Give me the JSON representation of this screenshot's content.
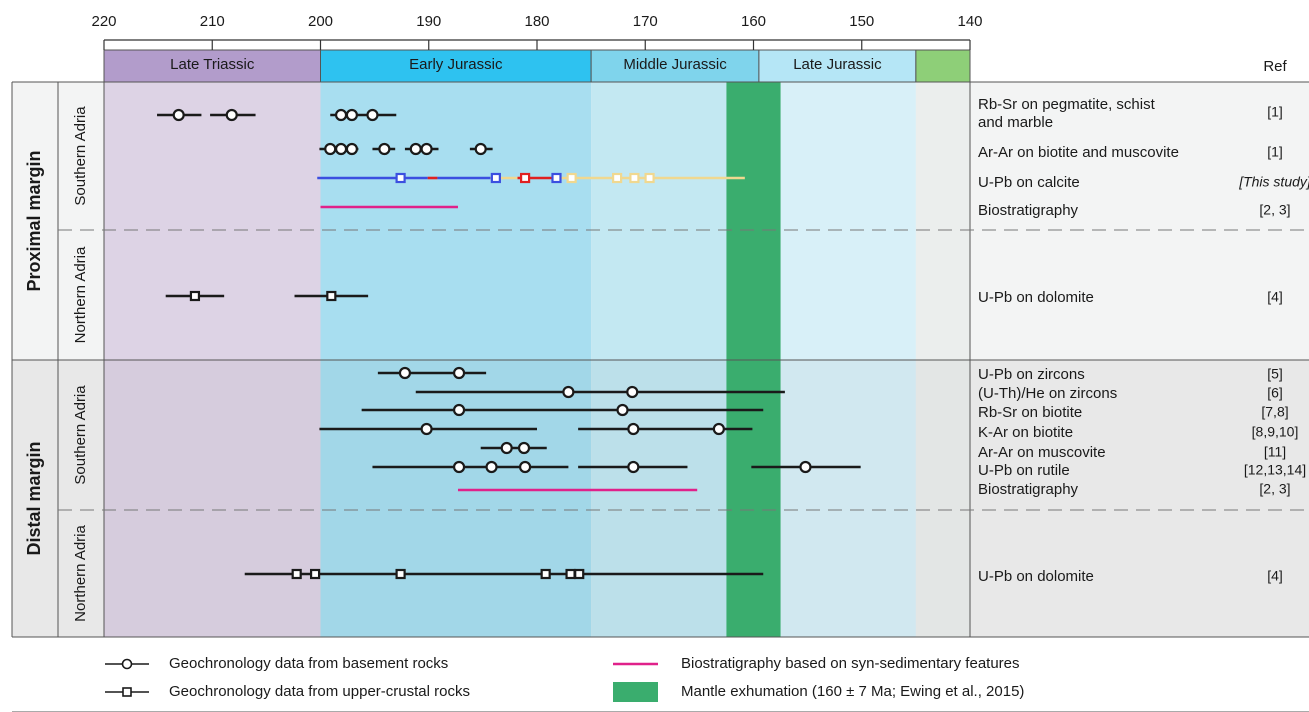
{
  "chart_data": {
    "type": "range",
    "xlim": [
      220,
      140
    ],
    "xticks": [
      220,
      210,
      200,
      190,
      180,
      170,
      160,
      150,
      140
    ],
    "ref_header": "Ref",
    "periods": [
      {
        "name": "Late Triassic",
        "from": 220,
        "to": 200,
        "color": "#b29ccb",
        "band": "#ddd3e5"
      },
      {
        "name": "Early Jurassic",
        "from": 200,
        "to": 175,
        "color": "#2ec2f0",
        "band": "#a8def0"
      },
      {
        "name": "Middle Jurassic",
        "from": 175,
        "to": 159.5,
        "color": "#7fd4ec",
        "band": "#c3e8f2"
      },
      {
        "name": "Late Jurassic",
        "from": 159.5,
        "to": 145,
        "color": "#b5e6f6",
        "band": "#d8f0f8"
      },
      {
        "from": 145,
        "to": 140,
        "color": "#8ecf78",
        "band": "#ebeeed"
      }
    ],
    "exhumation": {
      "from": 162.5,
      "to": 157.5,
      "color": "#3aad6e"
    },
    "groups": [
      {
        "name": "Proximal margin",
        "subgroups": [
          {
            "name": "Southern Adria",
            "rows": [
              {
                "method": [
                  "Rb-Sr on pegmatite, schist",
                  "and marble"
                ],
                "ref": "[1]",
                "marker": "circle",
                "segments": [
                  {
                    "from": 215.1,
                    "to": 211.0
                  },
                  {
                    "from": 210.2,
                    "to": 206.0
                  },
                  {
                    "from": 199.1,
                    "to": 193.0
                  }
                ],
                "points": [
                  {
                    "age": 213.1
                  },
                  {
                    "age": 208.2
                  },
                  {
                    "age": 198.1
                  },
                  {
                    "age": 197.1
                  },
                  {
                    "age": 195.2
                  }
                ]
              },
              {
                "method": [
                  "Ar-Ar on biotite and muscovite"
                ],
                "ref": "[1]",
                "marker": "circle",
                "segments": [
                  {
                    "from": 200.1,
                    "to": 196.5
                  },
                  {
                    "from": 195.2,
                    "to": 193.1
                  },
                  {
                    "from": 192.2,
                    "to": 189.1
                  },
                  {
                    "from": 186.2,
                    "to": 184.1
                  }
                ],
                "points": [
                  {
                    "age": 199.1
                  },
                  {
                    "age": 198.1
                  },
                  {
                    "age": 197.1
                  },
                  {
                    "age": 194.1
                  },
                  {
                    "age": 191.2
                  },
                  {
                    "age": 190.2
                  },
                  {
                    "age": 185.2
                  }
                ]
              },
              {
                "method": [
                  "U-Pb on calcite"
                ],
                "ref": "[This study]",
                "italic": true,
                "marker": "square",
                "segments": [
                  {
                    "from": 200.3,
                    "to": 190.1,
                    "color": "#3b4fe0"
                  },
                  {
                    "from": 190.1,
                    "to": 189.2,
                    "color": "#e02020"
                  },
                  {
                    "from": 189.2,
                    "to": 184.3,
                    "color": "#3b4fe0"
                  },
                  {
                    "from": 184.3,
                    "to": 181.8,
                    "color": "#f0d890"
                  },
                  {
                    "from": 181.8,
                    "to": 178.2,
                    "color": "#e02020"
                  },
                  {
                    "from": 178.2,
                    "to": 160.8,
                    "color": "#f0d890"
                  }
                ],
                "points": [
                  {
                    "age": 192.6,
                    "color": "#3b4fe0"
                  },
                  {
                    "age": 183.8,
                    "color": "#3b4fe0"
                  },
                  {
                    "age": 181.1,
                    "color": "#e02020"
                  },
                  {
                    "age": 178.2,
                    "color": "#3b4fe0"
                  },
                  {
                    "age": 176.8,
                    "color": "#f0d890"
                  },
                  {
                    "age": 172.6,
                    "color": "#f0d890"
                  },
                  {
                    "age": 171.0,
                    "color": "#f0d890"
                  },
                  {
                    "age": 169.6,
                    "color": "#f0d890"
                  }
                ]
              },
              {
                "method": [
                  "Biostratigraphy"
                ],
                "ref": "[2, 3]",
                "marker": "circle",
                "segments": [
                  {
                    "from": 200.0,
                    "to": 187.3,
                    "color": "#e0218a"
                  }
                ],
                "points": []
              }
            ]
          },
          {
            "name": "Northern Adria",
            "rows": [
              {
                "method": [
                  "U-Pb on dolomite"
                ],
                "ref": "[4]",
                "marker": "square",
                "segments": [
                  {
                    "from": 214.3,
                    "to": 208.9
                  },
                  {
                    "from": 202.4,
                    "to": 195.6
                  }
                ],
                "points": [
                  {
                    "age": 211.6
                  },
                  {
                    "age": 199.0
                  }
                ]
              }
            ]
          }
        ]
      },
      {
        "name": "Distal margin",
        "subgroups": [
          {
            "name": "Southern Adria",
            "rows": [
              {
                "method": [
                  "U-Pb on zircons"
                ],
                "ref": "[5]",
                "marker": "circle",
                "segments": [
                  {
                    "from": 194.7,
                    "to": 184.7
                  }
                ],
                "points": [
                  {
                    "age": 192.2
                  },
                  {
                    "age": 187.2
                  }
                ]
              },
              {
                "method": [
                  "(U-Th)/He on zircons"
                ],
                "ref": "[6]",
                "marker": "circle",
                "segments": [
                  {
                    "from": 191.2,
                    "to": 157.1
                  }
                ],
                "points": [
                  {
                    "age": 177.1
                  },
                  {
                    "age": 171.2
                  }
                ]
              },
              {
                "method": [
                  "Rb-Sr on biotite"
                ],
                "ref": "[7,8]",
                "marker": "circle",
                "segments": [
                  {
                    "from": 196.2,
                    "to": 159.1
                  }
                ],
                "points": [
                  {
                    "age": 187.2
                  },
                  {
                    "age": 172.1
                  }
                ]
              },
              {
                "method": [
                  "K-Ar on biotite"
                ],
                "ref": "[8,9,10]",
                "marker": "circle",
                "segments": [
                  {
                    "from": 200.1,
                    "to": 180.0
                  },
                  {
                    "from": 176.2,
                    "to": 160.1
                  }
                ],
                "points": [
                  {
                    "age": 190.2
                  },
                  {
                    "age": 171.1
                  },
                  {
                    "age": 163.2
                  }
                ]
              },
              {
                "method": [
                  "Ar-Ar on muscovite"
                ],
                "ref": "[11]",
                "marker": "circle",
                "segments": [
                  {
                    "from": 185.2,
                    "to": 179.1
                  }
                ],
                "points": [
                  {
                    "age": 182.8
                  },
                  {
                    "age": 181.2
                  }
                ]
              },
              {
                "method": [
                  "U-Pb on rutile"
                ],
                "ref": "[12,13,14]",
                "marker": "circle",
                "segments": [
                  {
                    "from": 195.2,
                    "to": 177.1
                  },
                  {
                    "from": 176.2,
                    "to": 166.1
                  },
                  {
                    "from": 160.2,
                    "to": 150.1
                  }
                ],
                "points": [
                  {
                    "age": 187.2
                  },
                  {
                    "age": 184.2
                  },
                  {
                    "age": 181.1
                  },
                  {
                    "age": 171.1
                  },
                  {
                    "age": 155.2
                  }
                ]
              },
              {
                "method": [
                  "Biostratigraphy"
                ],
                "ref": "[2, 3]",
                "marker": "circle",
                "segments": [
                  {
                    "from": 187.3,
                    "to": 165.2,
                    "color": "#e0218a"
                  }
                ],
                "points": []
              }
            ]
          },
          {
            "name": "Northern Adria",
            "rows": [
              {
                "method": [
                  "U-Pb on dolomite"
                ],
                "ref": "[4]",
                "marker": "square",
                "segments": [
                  {
                    "from": 207.0,
                    "to": 159.1
                  }
                ],
                "points": [
                  {
                    "age": 202.2
                  },
                  {
                    "age": 200.5
                  },
                  {
                    "age": 192.6
                  },
                  {
                    "age": 179.2
                  },
                  {
                    "age": 176.9
                  },
                  {
                    "age": 176.1
                  }
                ]
              }
            ]
          }
        ]
      }
    ],
    "legend": [
      {
        "label": "Geochronology data from basement rocks",
        "symbol": "circle"
      },
      {
        "label": "Geochronology data from upper-crustal rocks",
        "symbol": "square"
      },
      {
        "label": "Biostratigraphy based on syn-sedimentary features",
        "symbol": "line",
        "color": "#e0218a"
      },
      {
        "label": "Mantle exhumation (160 ± 7 Ma; Ewing et al., 2015)",
        "symbol": "box",
        "color": "#3aad6e"
      }
    ]
  }
}
